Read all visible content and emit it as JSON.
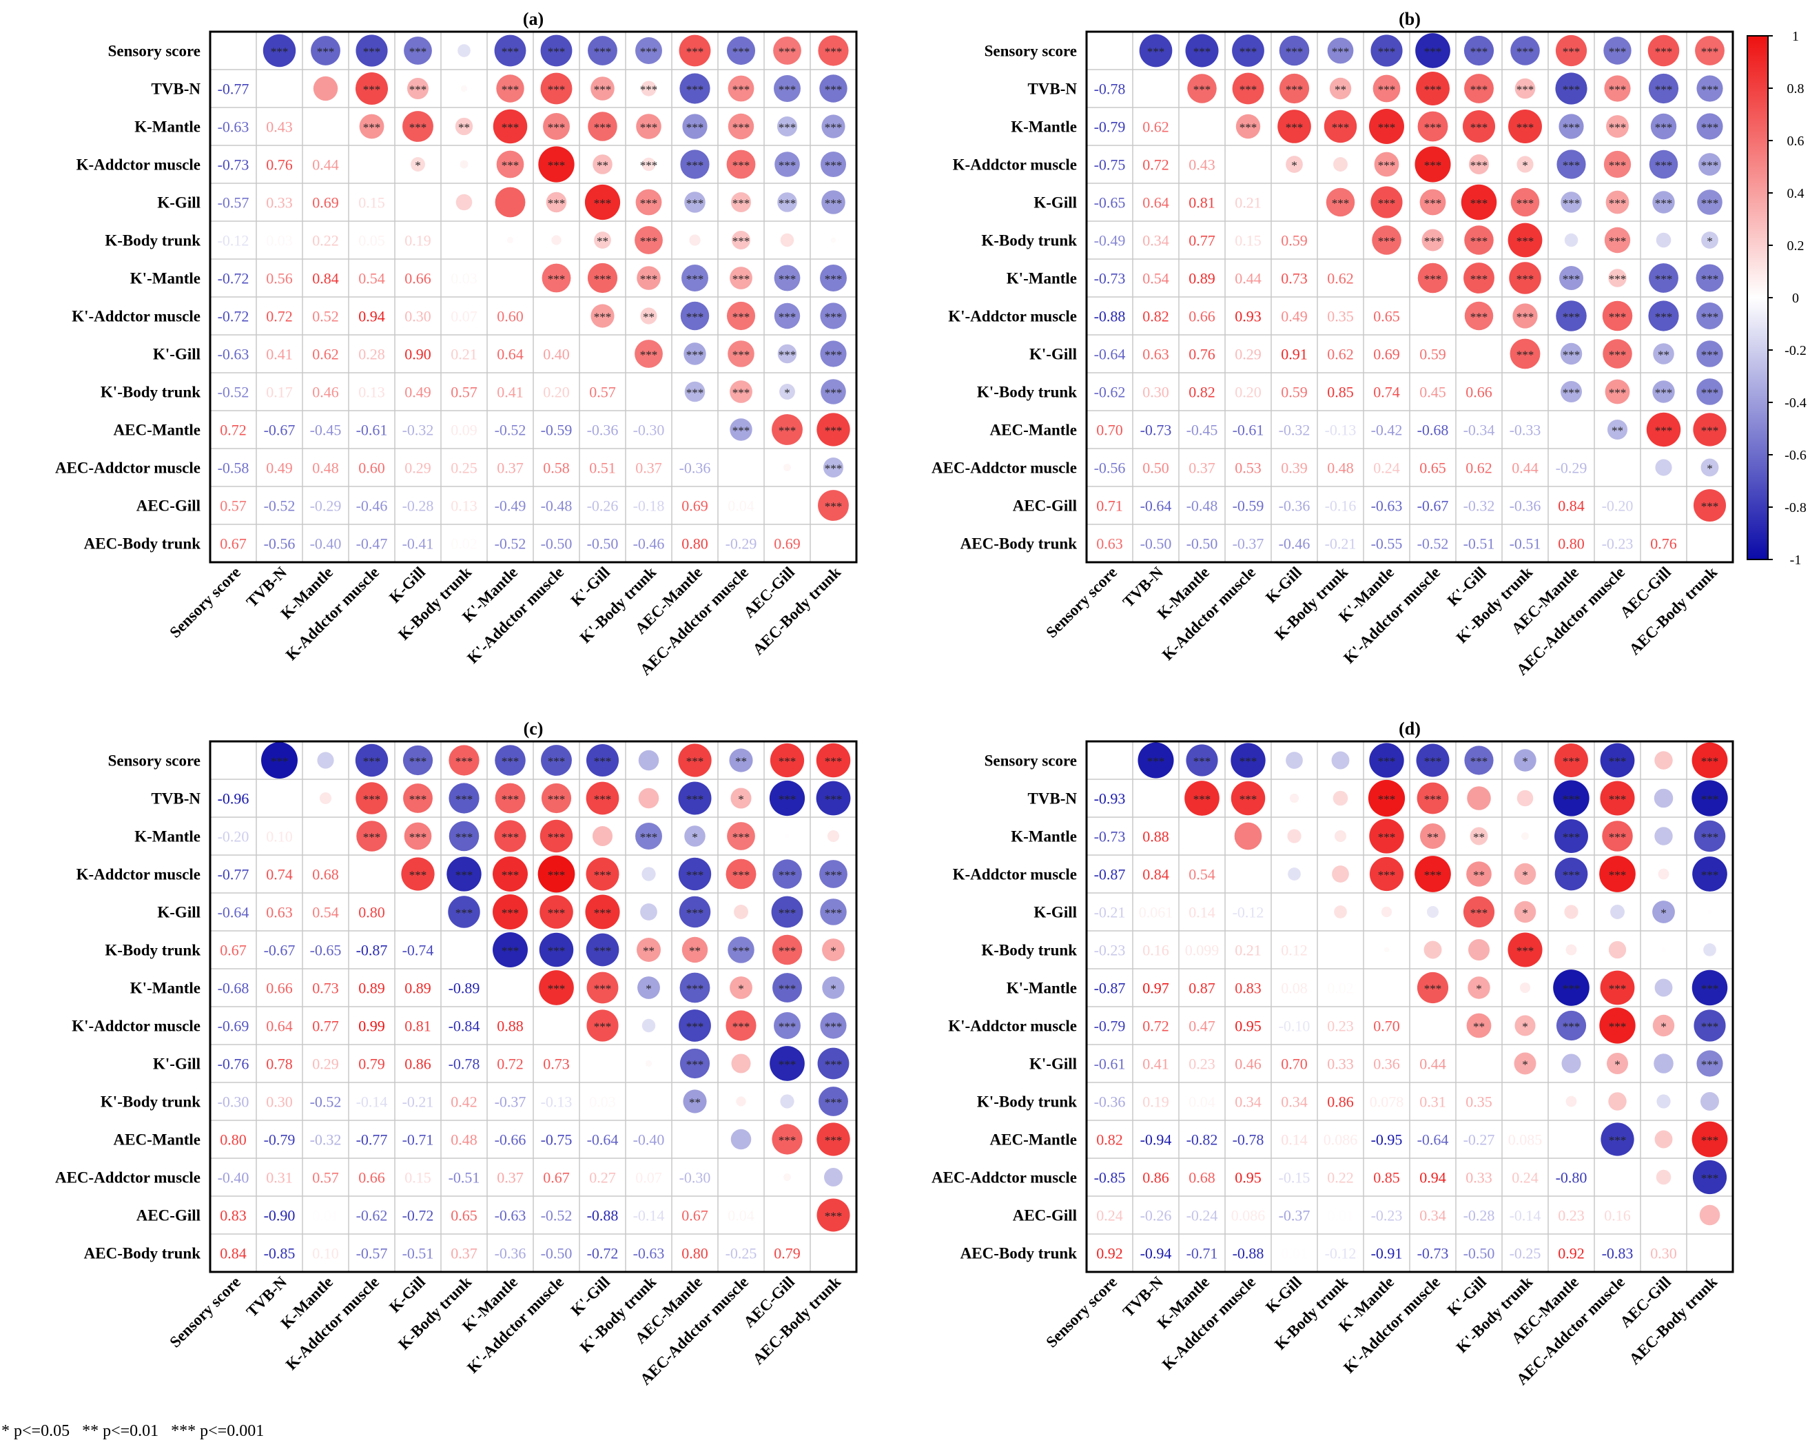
{
  "chart_data": {
    "type": "heatmap",
    "variables": [
      "Sensory score",
      "TVB-N",
      "K-Mantle",
      "K-Addctor muscle",
      "K-Gill",
      "K-Body trunk",
      "K'-Mantle",
      "K'-Addctor muscle",
      "K'-Gill",
      "K'-Body trunk",
      "AEC-Mantle",
      "AEC-Addctor muscle",
      "AEC-Gill",
      "AEC-Body trunk"
    ],
    "color_scale": {
      "min": -1,
      "max": 1,
      "ticks": [
        "1",
        "0.8",
        "0.6",
        "0.4",
        "0.2",
        "0",
        "-0.2",
        "-0.4",
        "-0.6",
        "-0.8",
        "-1"
      ],
      "low_color": "#0a0aa8",
      "mid_color": "#ffffff",
      "high_color": "#ee1111"
    },
    "lower_triangle": "correlation coefficient text",
    "upper_triangle": "circle sized and colored by correlation, with significance stars",
    "panels": [
      {
        "label": "(a)",
        "lower": [
          [
            "-0.77"
          ],
          [
            "-0.63",
            "0.43"
          ],
          [
            "-0.73",
            "0.76",
            "0.44"
          ],
          [
            "-0.57",
            "0.33",
            "0.69",
            "0.15"
          ],
          [
            "-0.12",
            "0.03",
            "0.22",
            "0.05",
            "0.19"
          ],
          [
            "-0.72",
            "0.56",
            "0.84",
            "0.54",
            "0.66",
            "0.03"
          ],
          [
            "-0.72",
            "0.72",
            "0.52",
            "0.94",
            "0.30",
            "0.07",
            "0.60"
          ],
          [
            "-0.63",
            "0.41",
            "0.62",
            "0.28",
            "0.90",
            "0.21",
            "0.64",
            "0.40"
          ],
          [
            "-0.52",
            "0.17",
            "0.46",
            "0.13",
            "0.49",
            "0.57",
            "0.41",
            "0.20",
            "0.57"
          ],
          [
            "0.72",
            "-0.67",
            "-0.45",
            "-0.61",
            "-0.32",
            "0.09",
            "-0.52",
            "-0.59",
            "-0.36",
            "-0.30"
          ],
          [
            "-0.58",
            "0.49",
            "0.48",
            "0.60",
            "0.29",
            "0.25",
            "0.37",
            "0.58",
            "0.51",
            "0.37",
            "-0.36"
          ],
          [
            "0.57",
            "-0.52",
            "-0.29",
            "-0.46",
            "-0.28",
            "0.13",
            "-0.49",
            "-0.48",
            "-0.26",
            "-0.18",
            "0.69",
            "0.04"
          ],
          [
            "0.67",
            "-0.56",
            "-0.40",
            "-0.47",
            "-0.41",
            "0.02",
            "-0.52",
            "-0.50",
            "-0.50",
            "-0.46",
            "0.80",
            "-0.29",
            "0.69"
          ]
        ],
        "stars": [
          [
            "***"
          ],
          [
            "***",
            ""
          ],
          [
            "***",
            "***",
            "***"
          ],
          [
            "***",
            "***",
            "***",
            "*"
          ],
          [
            "",
            "",
            "**",
            "",
            ""
          ],
          [
            "***",
            "***",
            "***",
            "***",
            "",
            ""
          ],
          [
            "***",
            "***",
            "***",
            "***",
            "***",
            "",
            "***"
          ],
          [
            "***",
            "***",
            "***",
            "**",
            "***",
            "**",
            "***",
            "***"
          ],
          [
            "***",
            "***",
            "***",
            "***",
            "***",
            "***",
            "***",
            "**",
            "***"
          ],
          [
            "***",
            "***",
            "***",
            "***",
            "***",
            "",
            "***",
            "***",
            "***",
            "***"
          ],
          [
            "***",
            "***",
            "***",
            "***",
            "***",
            "***",
            "***",
            "***",
            "***",
            "***",
            "***"
          ],
          [
            "***",
            "***",
            "***",
            "***",
            "***",
            "",
            "***",
            "***",
            "***",
            "*",
            "***",
            ""
          ],
          [
            "***",
            "***",
            "***",
            "***",
            "***",
            "",
            "***",
            "***",
            "***",
            "***",
            "***",
            "***",
            "***"
          ]
        ]
      },
      {
        "label": "(b)",
        "lower": [
          [
            "-0.78"
          ],
          [
            "-0.79",
            "0.62"
          ],
          [
            "-0.75",
            "0.72",
            "0.43"
          ],
          [
            "-0.65",
            "0.64",
            "0.81",
            "0.21"
          ],
          [
            "-0.49",
            "0.34",
            "0.77",
            "0.15",
            "0.59"
          ],
          [
            "-0.73",
            "0.54",
            "0.89",
            "0.44",
            "0.73",
            "0.62"
          ],
          [
            "-0.88",
            "0.82",
            "0.66",
            "0.93",
            "0.49",
            "0.35",
            "0.65"
          ],
          [
            "-0.64",
            "0.63",
            "0.76",
            "0.29",
            "0.91",
            "0.62",
            "0.69",
            "0.59"
          ],
          [
            "-0.62",
            "0.30",
            "0.82",
            "0.20",
            "0.59",
            "0.85",
            "0.74",
            "0.45",
            "0.66"
          ],
          [
            "0.70",
            "-0.73",
            "-0.45",
            "-0.61",
            "-0.32",
            "-0.13",
            "-0.42",
            "-0.68",
            "-0.34",
            "-0.33"
          ],
          [
            "-0.56",
            "0.50",
            "0.37",
            "0.53",
            "0.39",
            "0.48",
            "0.24",
            "0.65",
            "0.62",
            "0.44",
            "-0.29"
          ],
          [
            "0.71",
            "-0.64",
            "-0.48",
            "-0.59",
            "-0.36",
            "-0.16",
            "-0.63",
            "-0.67",
            "-0.32",
            "-0.36",
            "0.84",
            "-0.20"
          ],
          [
            "0.63",
            "-0.50",
            "-0.50",
            "-0.37",
            "-0.46",
            "-0.21",
            "-0.55",
            "-0.52",
            "-0.51",
            "-0.51",
            "0.80",
            "-0.23",
            "0.76"
          ]
        ],
        "stars": [
          [
            "***"
          ],
          [
            "***",
            "***"
          ],
          [
            "***",
            "***",
            "***"
          ],
          [
            "***",
            "***",
            "***",
            "*"
          ],
          [
            "***",
            "**",
            "***",
            "",
            "***"
          ],
          [
            "***",
            "***",
            "***",
            "***",
            "***",
            "***"
          ],
          [
            "***",
            "***",
            "***",
            "***",
            "***",
            "***",
            "***"
          ],
          [
            "***",
            "***",
            "***",
            "***",
            "***",
            "***",
            "***",
            "***"
          ],
          [
            "***",
            "***",
            "***",
            "*",
            "***",
            "***",
            "***",
            "***",
            "***"
          ],
          [
            "***",
            "***",
            "***",
            "***",
            "***",
            "",
            "***",
            "***",
            "***",
            "***"
          ],
          [
            "***",
            "***",
            "***",
            "***",
            "***",
            "***",
            "***",
            "***",
            "***",
            "***",
            "**"
          ],
          [
            "***",
            "***",
            "***",
            "***",
            "***",
            "",
            "***",
            "***",
            "**",
            "***",
            "***",
            ""
          ],
          [
            "***",
            "***",
            "***",
            "***",
            "***",
            "*",
            "***",
            "***",
            "***",
            "***",
            "***",
            "*",
            "***"
          ]
        ]
      },
      {
        "label": "(c)",
        "lower": [
          [
            "-0.96"
          ],
          [
            "-0.20",
            "0.10"
          ],
          [
            "-0.77",
            "0.74",
            "0.68"
          ],
          [
            "-0.64",
            "0.63",
            "0.54",
            "0.80"
          ],
          [
            "0.67",
            "-0.67",
            "-0.65",
            "-0.87",
            "-0.74"
          ],
          [
            "-0.68",
            "0.66",
            "0.73",
            "0.89",
            "0.89",
            "-0.89"
          ],
          [
            "-0.69",
            "0.64",
            "0.77",
            "0.99",
            "0.81",
            "-0.84",
            "0.88"
          ],
          [
            "-0.76",
            "0.78",
            "0.29",
            "0.79",
            "0.86",
            "-0.78",
            "0.72",
            "0.73"
          ],
          [
            "-0.30",
            "0.30",
            "-0.52",
            "-0.14",
            "-0.21",
            "0.42",
            "-0.37",
            "-0.13",
            "0.03"
          ],
          [
            "0.80",
            "-0.79",
            "-0.32",
            "-0.77",
            "-0.71",
            "0.48",
            "-0.66",
            "-0.75",
            "-0.64",
            "-0.40"
          ],
          [
            "-0.40",
            "0.31",
            "0.57",
            "0.66",
            "0.15",
            "-0.51",
            "0.37",
            "0.67",
            "0.27",
            "0.07",
            "-0.30"
          ],
          [
            "0.83",
            "-0.90",
            "0.01",
            "-0.62",
            "-0.72",
            "0.65",
            "-0.63",
            "-0.52",
            "-0.88",
            "-0.14",
            "0.67",
            "0.04"
          ],
          [
            "0.84",
            "-0.85",
            "0.10",
            "-0.57",
            "-0.51",
            "0.37",
            "-0.36",
            "-0.50",
            "-0.72",
            "-0.63",
            "0.80",
            "-0.25",
            "0.79"
          ]
        ],
        "stars": [
          [
            "***"
          ],
          [
            "",
            ""
          ],
          [
            "***",
            "***",
            "***"
          ],
          [
            "***",
            "***",
            "***",
            "***"
          ],
          [
            "***",
            "***",
            "***",
            "***",
            "***"
          ],
          [
            "***",
            "***",
            "***",
            "***",
            "***",
            "***"
          ],
          [
            "***",
            "***",
            "***",
            "***",
            "***",
            "***",
            "***"
          ],
          [
            "***",
            "***",
            "",
            "***",
            "***",
            "***",
            "***",
            "***"
          ],
          [
            "",
            "",
            "***",
            "",
            "",
            "**",
            "*",
            "",
            ""
          ],
          [
            "***",
            "***",
            "*",
            "***",
            "***",
            "**",
            "***",
            "***",
            "***",
            "**"
          ],
          [
            "**",
            "*",
            "***",
            "***",
            "",
            "***",
            "*",
            "***",
            "",
            "",
            ""
          ],
          [
            "***",
            "***",
            "",
            "***",
            "***",
            "***",
            "***",
            "***",
            "***",
            "",
            "***",
            ""
          ],
          [
            "***",
            "***",
            "",
            "***",
            "***",
            "*",
            "*",
            "***",
            "***",
            "***",
            "***",
            "",
            "***"
          ]
        ]
      },
      {
        "label": "(d)",
        "lower": [
          [
            "-0.93"
          ],
          [
            "-0.73",
            "0.88"
          ],
          [
            "-0.87",
            "0.84",
            "0.54"
          ],
          [
            "-0.21",
            "0.061",
            "0.14",
            "-0.12"
          ],
          [
            "-0.23",
            "0.16",
            "0.099",
            "0.21",
            "0.12"
          ],
          [
            "-0.87",
            "0.97",
            "0.87",
            "0.83",
            "0.08",
            "0.02"
          ],
          [
            "-0.79",
            "0.72",
            "0.47",
            "0.95",
            "-0.10",
            "0.23",
            "0.70"
          ],
          [
            "-0.61",
            "0.41",
            "0.23",
            "0.46",
            "0.70",
            "0.33",
            "0.36",
            "0.44"
          ],
          [
            "-0.36",
            "0.19",
            "0.04",
            "0.34",
            "0.34",
            "0.86",
            "0.078",
            "0.31",
            "0.35"
          ],
          [
            "0.82",
            "-0.94",
            "-0.82",
            "-0.78",
            "0.14",
            "0.086",
            "-0.95",
            "-0.64",
            "-0.27",
            "0.085"
          ],
          [
            "-0.85",
            "0.86",
            "0.68",
            "0.95",
            "-0.15",
            "0.22",
            "0.85",
            "0.94",
            "0.33",
            "0.24",
            "-0.80"
          ],
          [
            "0.24",
            "-0.26",
            "-0.24",
            "0.086",
            "-0.37",
            "0.01",
            "-0.23",
            "0.34",
            "-0.28",
            "-0.14",
            "0.23",
            "0.16"
          ],
          [
            "0.92",
            "-0.94",
            "-0.71",
            "-0.88",
            "0.01",
            "-0.12",
            "-0.91",
            "-0.73",
            "-0.50",
            "-0.25",
            "0.92",
            "-0.83",
            "0.30"
          ]
        ],
        "stars": [
          [
            "***"
          ],
          [
            "***",
            "***"
          ],
          [
            "***",
            "***",
            ""
          ],
          [
            "",
            "",
            "",
            ""
          ],
          [
            "",
            "",
            "",
            "",
            ""
          ],
          [
            "***",
            "***",
            "***",
            "***",
            "",
            ""
          ],
          [
            "***",
            "***",
            "**",
            "***",
            "",
            "",
            "***"
          ],
          [
            "***",
            "",
            "**",
            "**",
            "***",
            "",
            "*",
            "**"
          ],
          [
            "*",
            "",
            "",
            "*",
            "*",
            "***",
            "",
            "*",
            "*"
          ],
          [
            "***",
            "***",
            "***",
            "***",
            "",
            "",
            "***",
            "***",
            "",
            ""
          ],
          [
            "***",
            "***",
            "***",
            "***",
            "",
            "",
            "***",
            "***",
            "*",
            "",
            "***"
          ],
          [
            "",
            "",
            "",
            "",
            "*",
            "",
            "",
            "*",
            "",
            "",
            "",
            ""
          ],
          [
            "***",
            "***",
            "***",
            "***",
            "",
            "",
            "***",
            "***",
            "***",
            "",
            "***",
            "***",
            ""
          ]
        ]
      }
    ],
    "footnote": "* p<=0.05   ** p<=0.01   *** p<=0.001"
  }
}
